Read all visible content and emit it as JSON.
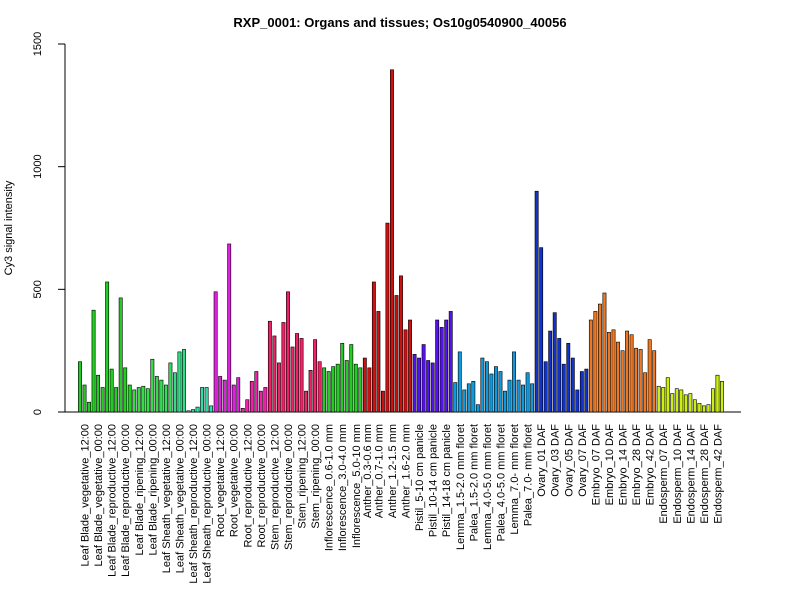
{
  "chart_data": {
    "type": "bar",
    "title": "RXP_0001: Organs and tissues; Os10g0540900_40056",
    "ylabel": "Cy3 signal intensity",
    "xlabel": "",
    "ylim": [
      0,
      1500
    ],
    "yticks": [
      0,
      500,
      1000,
      1500
    ],
    "grid": false,
    "legend": "none",
    "groups": [
      {
        "label": "Leaf Blade_vegetative_12:00",
        "color": "#22cc22",
        "values": [
          205,
          110,
          40
        ]
      },
      {
        "label": "Leaf Blade_vegetative_00:00",
        "color": "#22cc22",
        "values": [
          415,
          150,
          100
        ]
      },
      {
        "label": "Leaf Blade_reproductive_12:00",
        "color": "#22cc22",
        "values": [
          530,
          175,
          100
        ]
      },
      {
        "label": "Leaf Blade_reproductive_00:00",
        "color": "#22cc22",
        "values": [
          465,
          180,
          110
        ]
      },
      {
        "label": "Leaf Blade_ripening_12:00",
        "color": "#33dd44",
        "values": [
          90,
          100,
          105
        ]
      },
      {
        "label": "Leaf Blade_ripening_00:00",
        "color": "#33dd44",
        "values": [
          95,
          215,
          145
        ]
      },
      {
        "label": "Leaf Sheath_vegetative_12:00",
        "color": "#33dd55",
        "values": [
          130,
          110,
          200
        ]
      },
      {
        "label": "Leaf Sheath_vegetative_00:00",
        "color": "#33dd88",
        "values": [
          160,
          245,
          255
        ]
      },
      {
        "label": "Leaf Sheath_reproductive_12:00",
        "color": "#33ddaa",
        "values": [
          5,
          10,
          20
        ]
      },
      {
        "label": "Leaf Sheath_reproductive_00:00",
        "color": "#33ddaa",
        "values": [
          100,
          100,
          25
        ]
      },
      {
        "label": "Root_vegetative_12:00",
        "color": "#dd22dd",
        "values": [
          490,
          145,
          130
        ]
      },
      {
        "label": "Root_vegetative_00:00",
        "color": "#dd22dd",
        "values": [
          685,
          110,
          140
        ]
      },
      {
        "label": "Root_reproductive_12:00",
        "color": "#ee22aa",
        "values": [
          15,
          50,
          125
        ]
      },
      {
        "label": "Root_reproductive_00:00",
        "color": "#ee22aa",
        "values": [
          165,
          85,
          100
        ]
      },
      {
        "label": "Stem_reproductive_12:00",
        "color": "#ee2266",
        "values": [
          370,
          310,
          200
        ]
      },
      {
        "label": "Stem_reproductive_00:00",
        "color": "#ee2266",
        "values": [
          365,
          490,
          265
        ]
      },
      {
        "label": "Stem_ripening_12:00",
        "color": "#ee2266",
        "values": [
          320,
          300,
          85
        ]
      },
      {
        "label": "Stem_ripening_00:00",
        "color": "#ee2266",
        "values": [
          170,
          295,
          205
        ]
      },
      {
        "label": "Inflorescence_0.6-1.0 mm",
        "color": "#22cc22",
        "values": [
          180,
          165,
          185
        ]
      },
      {
        "label": "Inflorescence_3.0-4.0 mm",
        "color": "#22cc22",
        "values": [
          195,
          280,
          210
        ]
      },
      {
        "label": "Inflorescence_5.0-10 mm",
        "color": "#22cc22",
        "values": [
          275,
          195,
          180
        ]
      },
      {
        "label": "Anther_0.3-0.6 mm",
        "color": "#cc1111",
        "values": [
          220,
          180
        ]
      },
      {
        "label": "Anther_0.7-1.0 mm",
        "color": "#cc1111",
        "values": [
          530,
          410,
          85
        ]
      },
      {
        "label": "Anther_1.2-1.5 mm",
        "color": "#cc1111",
        "values": [
          770,
          1395,
          475
        ]
      },
      {
        "label": "Anther_1.6-2.0 mm",
        "color": "#cc1111",
        "values": [
          555,
          335,
          375
        ]
      },
      {
        "label": "Pistil_5-10 cm panicle",
        "color": "#5511ee",
        "values": [
          235,
          220,
          275
        ]
      },
      {
        "label": "Pistil_10-14 cm panicle",
        "color": "#5511ee",
        "values": [
          210,
          200,
          375
        ]
      },
      {
        "label": "Pistil_14-18 cm panicle",
        "color": "#5511ee",
        "values": [
          345,
          375,
          410
        ]
      },
      {
        "label": "Lemma_1.5-2.0 mm floret",
        "color": "#1199dd",
        "values": [
          120,
          245,
          90
        ]
      },
      {
        "label": "Palea_1.5-2.0 mm floret",
        "color": "#1199dd",
        "values": [
          115,
          125,
          30
        ]
      },
      {
        "label": "Lemma_4.0-5.0 mm floret",
        "color": "#1199dd",
        "values": [
          220,
          205,
          155
        ]
      },
      {
        "label": "Palea_4.0-5.0 mm floret",
        "color": "#1199dd",
        "values": [
          185,
          165,
          85
        ]
      },
      {
        "label": "Lemma_7.0- mm floret",
        "color": "#1199dd",
        "values": [
          130,
          245,
          130
        ]
      },
      {
        "label": "Palea_7.0- mm floret",
        "color": "#1199dd",
        "values": [
          110,
          160,
          115
        ]
      },
      {
        "label": "Ovary_01 DAF",
        "color": "#1133cc",
        "values": [
          900,
          670,
          205
        ]
      },
      {
        "label": "Ovary_03 DAF",
        "color": "#1133cc",
        "values": [
          330,
          405,
          300
        ]
      },
      {
        "label": "Ovary_05 DAF",
        "color": "#1133cc",
        "values": [
          195,
          280,
          220
        ]
      },
      {
        "label": "Ovary_07 DAF",
        "color": "#1133cc",
        "values": [
          90,
          165,
          175
        ]
      },
      {
        "label": "Embryo_07 DAF",
        "color": "#ee7722",
        "values": [
          375,
          410,
          440
        ]
      },
      {
        "label": "Embryo_10 DAF",
        "color": "#ee7722",
        "values": [
          485,
          325,
          335
        ]
      },
      {
        "label": "Embryo_14 DAF",
        "color": "#ee7722",
        "values": [
          285,
          250,
          330
        ]
      },
      {
        "label": "Embryo_28 DAF",
        "color": "#ee7722",
        "values": [
          315,
          260,
          255
        ]
      },
      {
        "label": "Embryo_42 DAF",
        "color": "#ee7722",
        "values": [
          160,
          295,
          250
        ]
      },
      {
        "label": "Endosperm_07 DAF",
        "color": "#ccee11",
        "values": [
          105,
          100,
          140
        ]
      },
      {
        "label": "Endosperm_10 DAF",
        "color": "#ccee11",
        "values": [
          75,
          95,
          90
        ]
      },
      {
        "label": "Endosperm_14 DAF",
        "color": "#ccee11",
        "values": [
          70,
          75,
          50
        ]
      },
      {
        "label": "Endosperm_28 DAF",
        "color": "#ccee11",
        "values": [
          35,
          25,
          30
        ]
      },
      {
        "label": "Endosperm_42 DAF",
        "color": "#ccee11",
        "values": [
          95,
          150,
          125
        ]
      }
    ]
  }
}
